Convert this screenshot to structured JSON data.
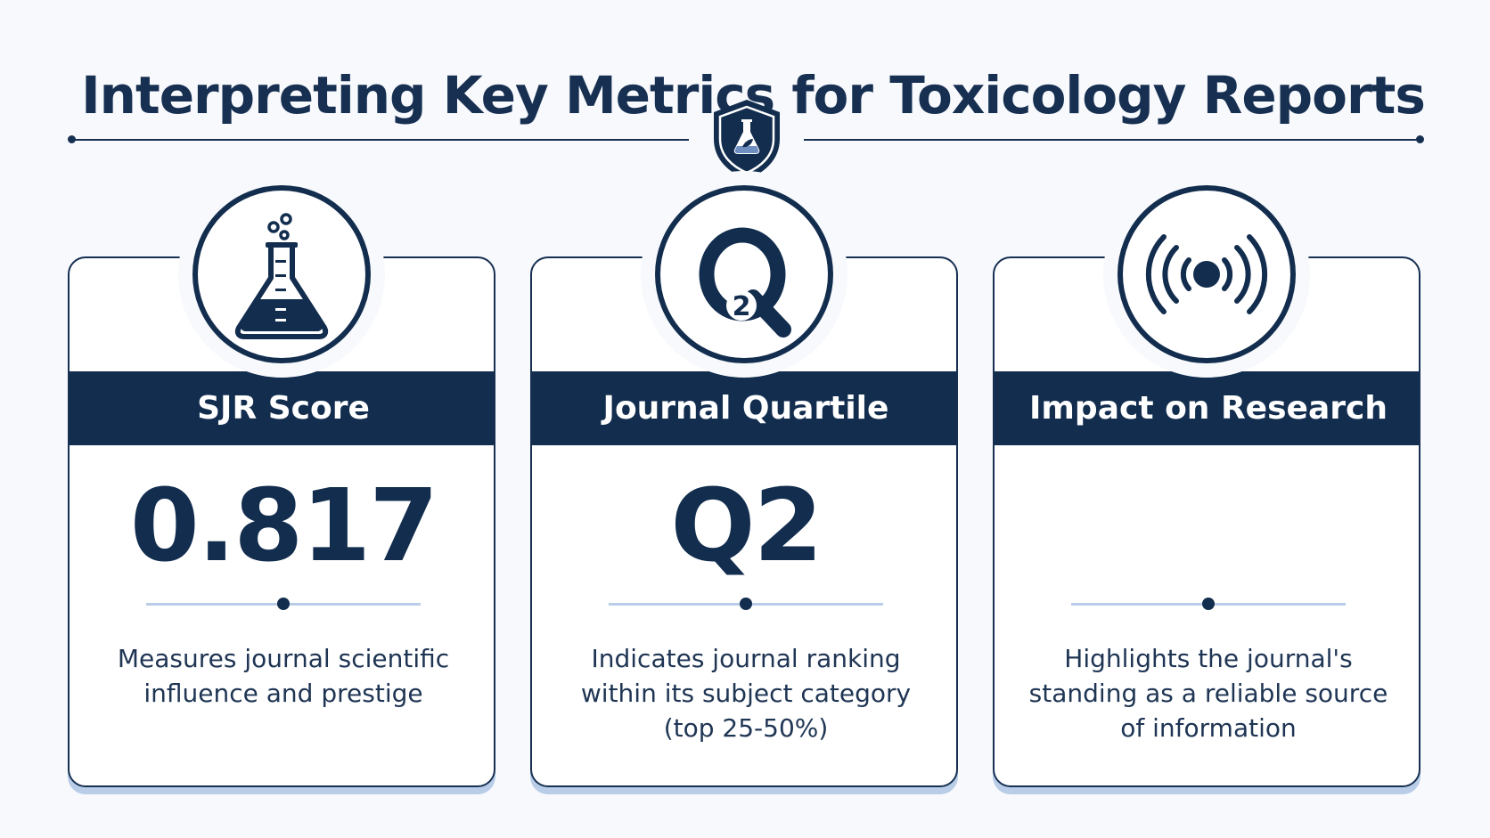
{
  "title": "Interpreting Key Metrics for Toxicology Reports",
  "header_icon": "shield-flask-icon",
  "cards": [
    {
      "icon": "erlenmeyer-flask-icon",
      "heading": "SJR Score",
      "value": "0.817",
      "description": "Measures journal scientific influence and prestige"
    },
    {
      "icon": "q2-quartile-icon",
      "icon_text": "2",
      "heading": "Journal Quartile",
      "value": "Q2",
      "description": "Indicates journal ranking within its subject category (top 25-50%)"
    },
    {
      "icon": "broadcast-signal-icon",
      "heading": "Impact on Research",
      "value": "",
      "description": "Highlights the journal's standing as a reliable source of information"
    }
  ],
  "colors": {
    "navy": "#122d4e",
    "light_blue": "#b9cde8",
    "background": "#f7f9fc"
  }
}
